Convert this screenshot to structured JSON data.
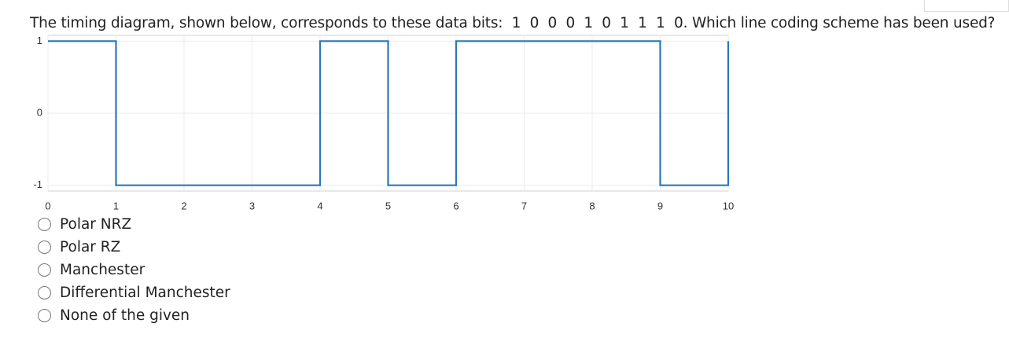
{
  "question": "The timing diagram, shown below, corresponds to these data bits:  1  0  0  0  1  0  1  1  1  0. Which line coding scheme has been used?",
  "chart_data": {
    "type": "line",
    "x": [
      0,
      1,
      1,
      4,
      4,
      5,
      5,
      6,
      6,
      9,
      9,
      10,
      10
    ],
    "series": [
      {
        "color": "#2b78b8",
        "values": [
          1,
          1,
          -1,
          -1,
          1,
          1,
          -1,
          -1,
          1,
          1,
          -1,
          -1,
          1
        ]
      }
    ],
    "xlim": [
      0,
      10
    ],
    "ylim": [
      -1.08,
      1.08
    ],
    "xticks": [
      0,
      1,
      2,
      3,
      4,
      5,
      6,
      7,
      8,
      9,
      10
    ],
    "yticks": [
      -1,
      0,
      1
    ],
    "grid": true
  },
  "options": [
    "Polar NRZ",
    "Polar RZ",
    "Manchester",
    "Differential Manchester",
    "None of the given"
  ]
}
